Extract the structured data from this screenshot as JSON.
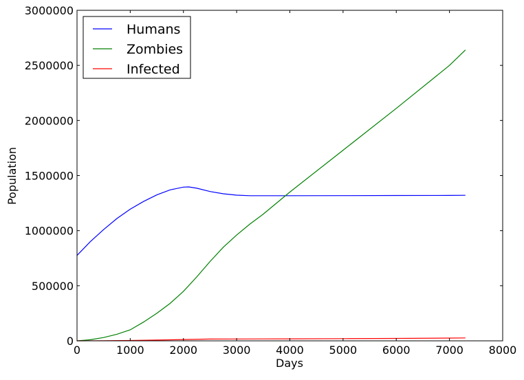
{
  "chart_data": {
    "type": "line",
    "title": "",
    "xlabel": "Days",
    "ylabel": "Population",
    "xlim": [
      0,
      8000
    ],
    "ylim": [
      0,
      3000000
    ],
    "xticks": [
      0,
      1000,
      2000,
      3000,
      4000,
      5000,
      6000,
      7000,
      8000
    ],
    "yticks": [
      0,
      500000,
      1000000,
      1500000,
      2000000,
      2500000,
      3000000
    ],
    "xtick_labels": [
      "0",
      "1000",
      "2000",
      "3000",
      "4000",
      "5000",
      "6000",
      "7000",
      "8000"
    ],
    "ytick_labels": [
      "0",
      "500000",
      "1000000",
      "1500000",
      "2000000",
      "2500000",
      "3000000"
    ],
    "grid": false,
    "legend_position": "top-left",
    "series": [
      {
        "name": "Humans",
        "color": "#0000ff",
        "x": [
          0,
          250,
          500,
          750,
          1000,
          1250,
          1500,
          1750,
          2000,
          2100,
          2250,
          2500,
          2750,
          3000,
          3250,
          3500,
          4000,
          5000,
          6000,
          7000,
          7300
        ],
        "y": [
          775000,
          900000,
          1010000,
          1110000,
          1195000,
          1265000,
          1325000,
          1370000,
          1395000,
          1397000,
          1385000,
          1355000,
          1335000,
          1322000,
          1317000,
          1317000,
          1317000,
          1318000,
          1319000,
          1320000,
          1321000
        ]
      },
      {
        "name": "Zombies",
        "color": "#008000",
        "x": [
          0,
          250,
          500,
          750,
          1000,
          1250,
          1500,
          1750,
          2000,
          2250,
          2500,
          2750,
          3000,
          3250,
          3500,
          4000,
          5000,
          6000,
          7000,
          7300
        ],
        "y": [
          0,
          10000,
          30000,
          60000,
          100000,
          170000,
          250000,
          340000,
          450000,
          580000,
          720000,
          850000,
          960000,
          1060000,
          1150000,
          1350000,
          1730000,
          2110000,
          2500000,
          2640000
        ]
      },
      {
        "name": "Infected",
        "color": "#ff0000",
        "x": [
          0,
          500,
          1000,
          1500,
          2000,
          2500,
          3000,
          4000,
          5000,
          6000,
          7000,
          7300
        ],
        "y": [
          0,
          1000,
          3000,
          7000,
          12000,
          16000,
          17000,
          18000,
          20000,
          22000,
          25000,
          26000
        ]
      }
    ]
  }
}
